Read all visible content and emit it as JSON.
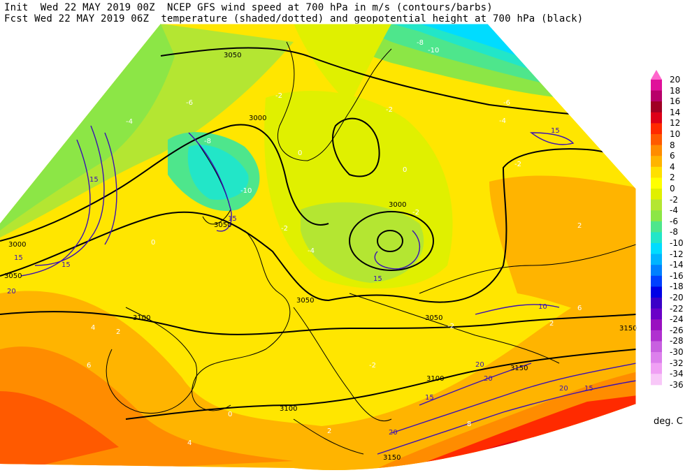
{
  "header": {
    "line1": "Init  Wed 22 MAY 2019 00Z  NCEP GFS wind speed at 700 hPa in m/s (contours/barbs)",
    "line2": "Fcst Wed 22 MAY 2019 06Z  temperature (shaded/dotted) and geopotential height at 700 hPa (black)"
  },
  "colorbar": {
    "units": "deg. C",
    "levels": [
      "20",
      "18",
      "16",
      "14",
      "12",
      "10",
      "8",
      "6",
      "4",
      "2",
      "0",
      "-2",
      "-4",
      "-6",
      "-8",
      "-10",
      "-12",
      "-14",
      "-16",
      "-18",
      "-20",
      "-22",
      "-24",
      "-26",
      "-28",
      "-30",
      "-32",
      "-34",
      "-36"
    ],
    "colors": [
      "#ff66cc",
      "#e0109a",
      "#b8006a",
      "#a00024",
      "#dd0018",
      "#ff2a00",
      "#ff5a00",
      "#ff8c00",
      "#ffb400",
      "#ffe000",
      "#ffff00",
      "#e0f000",
      "#b4e632",
      "#8ce646",
      "#4ee68c",
      "#22e6c8",
      "#00dcff",
      "#00b4ff",
      "#0080ff",
      "#0040ff",
      "#0000e6",
      "#3a00c8",
      "#6a00c8",
      "#9a10c0",
      "#b030d0",
      "#c860e0",
      "#dc80ec",
      "#f0a0f4",
      "#f8c8f8"
    ]
  },
  "map": {
    "height_labels": [
      "3050",
      "3000",
      "3050",
      "3000",
      "3050",
      "3000",
      "3050",
      "3100",
      "3050",
      "3100",
      "3150",
      "3100",
      "3150",
      "3150"
    ],
    "wind_labels": [
      "15",
      "20",
      "15",
      "15",
      "15",
      "15",
      "10",
      "20",
      "15",
      "20",
      "20",
      "15",
      "20",
      "15"
    ],
    "temp_labels": [
      "-2",
      "-6",
      "-8",
      "-10",
      "-4",
      "-2",
      "0",
      "-2",
      "-4",
      "-2",
      "0",
      "-2",
      "2",
      "2",
      "4",
      "6",
      "6",
      "8",
      "4",
      "2",
      "0",
      "-2",
      "-4",
      "-6",
      "-8",
      "-10",
      "2",
      "0",
      "-2"
    ],
    "colors": {
      "land_outline": "#000000",
      "height_contour": "#000000",
      "wind_contour": "#3a10b4"
    }
  }
}
